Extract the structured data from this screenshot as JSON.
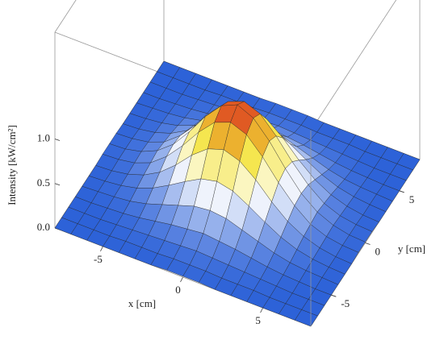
{
  "chart_data": {
    "type": "surface3d",
    "x_label": "x [cm]",
    "y_label": "y [cm]",
    "z_label": "Intensity [kW/cm²]",
    "xlim": [
      -8,
      8
    ],
    "ylim": [
      -8,
      8
    ],
    "zlim": [
      0,
      2.2
    ],
    "xticks": [
      -5,
      0,
      5
    ],
    "yticks": [
      -5,
      0,
      5
    ],
    "zticks": [
      {
        "value": 0,
        "label": "0.0"
      },
      0.5,
      {
        "value": 1,
        "label": "1.0"
      }
    ],
    "colors": [
      "#2d62d8",
      "#ffffff",
      "#f3e236",
      "#d9261c"
    ],
    "x": [
      -8,
      -7,
      -6,
      -5,
      -4,
      -3,
      -2,
      -1,
      0,
      1,
      2,
      3,
      4,
      5,
      6,
      7,
      8
    ],
    "y": [
      -8,
      -7,
      -6,
      -5,
      -4,
      -3,
      -2,
      -1,
      0,
      1,
      2,
      3,
      4,
      5,
      6,
      7,
      8
    ],
    "z": [
      [
        0,
        0,
        0,
        0,
        0,
        0,
        0,
        0.01,
        0.01,
        0.01,
        0,
        0,
        0,
        0,
        0,
        0,
        0
      ],
      [
        0,
        0,
        0,
        0,
        0.01,
        0.01,
        0.01,
        0.02,
        0.02,
        0.02,
        0.01,
        0.01,
        0.01,
        0,
        0,
        0,
        0
      ],
      [
        0,
        0,
        0,
        0.01,
        0.02,
        0.03,
        0.04,
        0.05,
        0.06,
        0.05,
        0.04,
        0.03,
        0.02,
        0.01,
        0,
        0,
        0
      ],
      [
        0,
        0,
        0.01,
        0.02,
        0.04,
        0.07,
        0.1,
        0.12,
        0.14,
        0.12,
        0.1,
        0.07,
        0.04,
        0.02,
        0.01,
        0,
        0
      ],
      [
        0,
        0.01,
        0.02,
        0.04,
        0.08,
        0.14,
        0.2,
        0.26,
        0.28,
        0.26,
        0.2,
        0.14,
        0.08,
        0.04,
        0.02,
        0.01,
        0
      ],
      [
        0,
        0.01,
        0.03,
        0.07,
        0.14,
        0.24,
        0.35,
        0.45,
        0.49,
        0.45,
        0.35,
        0.24,
        0.14,
        0.07,
        0.03,
        0.01,
        0
      ],
      [
        0,
        0.01,
        0.04,
        0.1,
        0.2,
        0.35,
        0.53,
        0.67,
        0.73,
        0.67,
        0.53,
        0.35,
        0.2,
        0.1,
        0.04,
        0.01,
        0
      ],
      [
        0.01,
        0.02,
        0.05,
        0.12,
        0.26,
        0.45,
        0.67,
        0.85,
        0.92,
        0.85,
        0.67,
        0.45,
        0.26,
        0.12,
        0.05,
        0.02,
        0.01
      ],
      [
        0.01,
        0.02,
        0.06,
        0.14,
        0.28,
        0.49,
        0.73,
        0.92,
        1.0,
        0.92,
        0.73,
        0.49,
        0.28,
        0.14,
        0.06,
        0.02,
        0.01
      ],
      [
        0.01,
        0.02,
        0.05,
        0.12,
        0.26,
        0.45,
        0.67,
        0.85,
        0.92,
        0.85,
        0.67,
        0.45,
        0.26,
        0.12,
        0.05,
        0.02,
        0.01
      ],
      [
        0,
        0.01,
        0.04,
        0.1,
        0.2,
        0.35,
        0.53,
        0.67,
        0.73,
        0.67,
        0.53,
        0.35,
        0.2,
        0.1,
        0.04,
        0.01,
        0
      ],
      [
        0,
        0.01,
        0.03,
        0.07,
        0.14,
        0.24,
        0.35,
        0.45,
        0.49,
        0.45,
        0.35,
        0.24,
        0.14,
        0.07,
        0.03,
        0.01,
        0
      ],
      [
        0,
        0.01,
        0.02,
        0.04,
        0.08,
        0.14,
        0.2,
        0.26,
        0.28,
        0.26,
        0.2,
        0.14,
        0.08,
        0.04,
        0.02,
        0.01,
        0
      ],
      [
        0,
        0,
        0.01,
        0.02,
        0.04,
        0.07,
        0.1,
        0.12,
        0.14,
        0.12,
        0.1,
        0.07,
        0.04,
        0.02,
        0.01,
        0,
        0
      ],
      [
        0,
        0,
        0,
        0.01,
        0.02,
        0.03,
        0.04,
        0.05,
        0.06,
        0.05,
        0.04,
        0.03,
        0.02,
        0.01,
        0,
        0,
        0
      ],
      [
        0,
        0,
        0,
        0,
        0.01,
        0.01,
        0.01,
        0.02,
        0.02,
        0.02,
        0.01,
        0.01,
        0.01,
        0,
        0,
        0,
        0
      ],
      [
        0,
        0,
        0,
        0,
        0,
        0,
        0,
        0.01,
        0.01,
        0.01,
        0,
        0,
        0,
        0,
        0,
        0,
        0
      ]
    ]
  }
}
